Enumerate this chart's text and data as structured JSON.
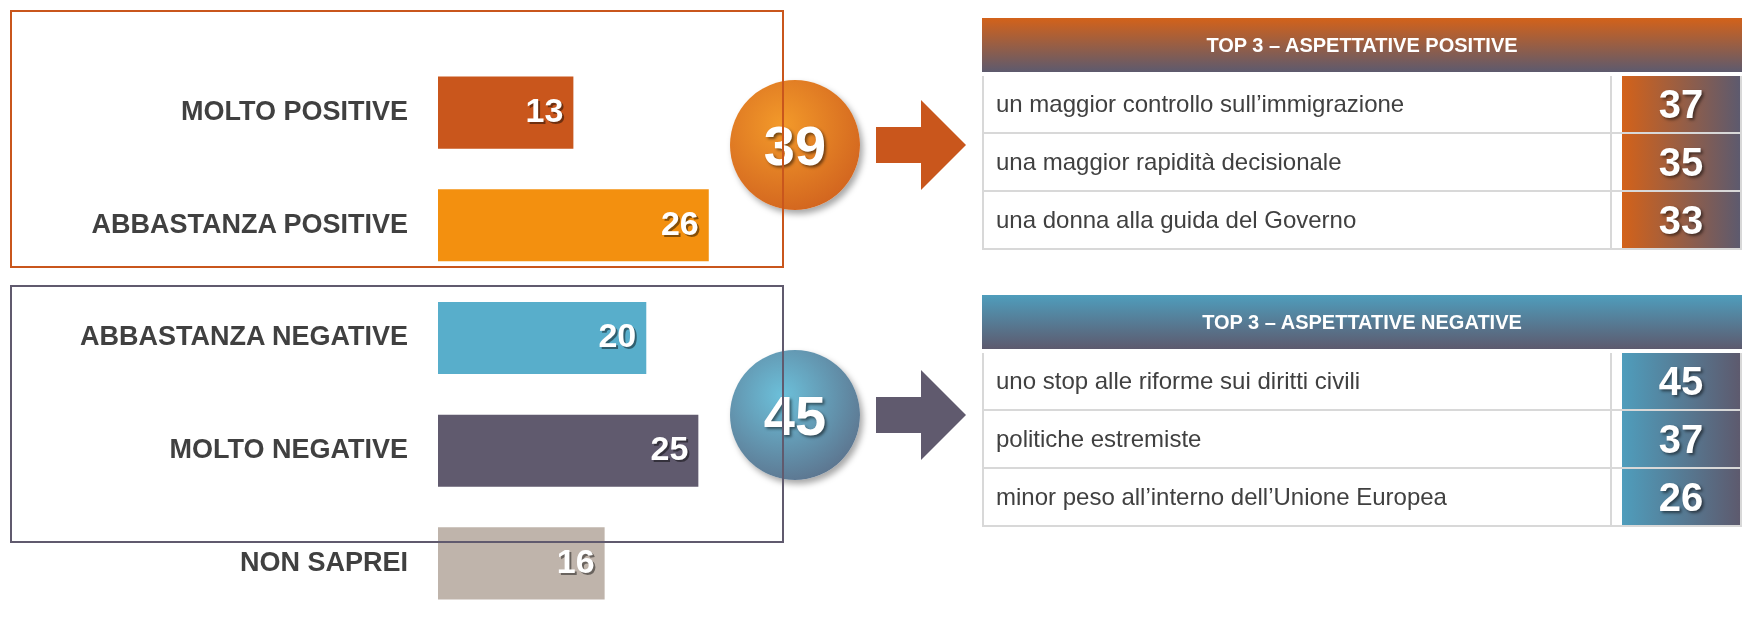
{
  "chart_data": [
    {
      "type": "bar",
      "orientation": "horizontal",
      "categories": [
        "MOLTO POSITIVE",
        "ABBASTANZA POSITIVE",
        "ABBASTANZA NEGATIVE",
        "MOLTO NEGATIVE",
        "NON SAPREI"
      ],
      "values": [
        13,
        26,
        20,
        25,
        16
      ],
      "colors": [
        "#c9561c",
        "#f3900f",
        "#58aecb",
        "#605a6e",
        "#bfb4ab"
      ],
      "data_labels": true,
      "legend": false,
      "annotations": [
        "39",
        "45"
      ]
    },
    {
      "type": "other",
      "title": "TOP 3 – ASPETTATIVE POSITIVE",
      "categories": [
        "un maggior controllo sull’immigrazione",
        "una maggior rapidità decisionale",
        "una donna alla guida del Governo"
      ],
      "values": [
        37,
        35,
        33
      ],
      "color": "#d3621a",
      "data_labels": true
    },
    {
      "type": "other",
      "title": "TOP 3 – ASPETTATIVE NEGATIVE",
      "categories": [
        "uno stop alle riforme sui diritti civili",
        "politiche estremiste",
        "minor peso all’interno dell’Unione Europea"
      ],
      "values": [
        45,
        37,
        26
      ],
      "color": "#4f9dbc",
      "data_labels": true
    }
  ]
}
